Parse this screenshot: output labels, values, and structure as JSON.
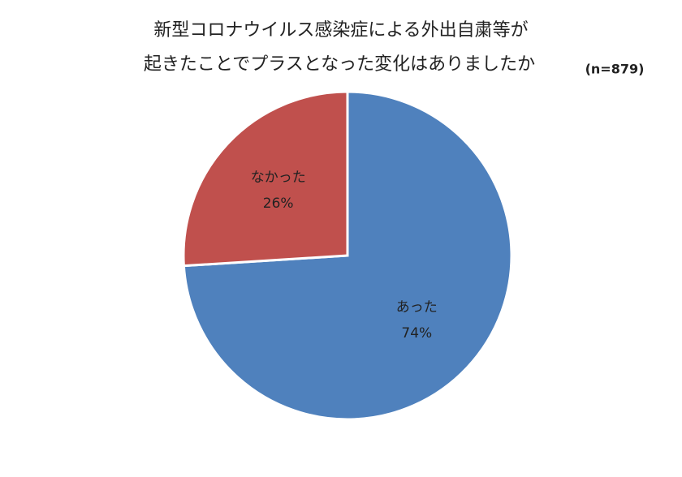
{
  "chart_data": {
    "type": "pie",
    "title": [
      "新型コロナウイルス感染症による外出自粛等が",
      "起きたことでプラスとなった変化はありましたか"
    ],
    "annotation": "(n=879)",
    "categories": [
      "あった",
      "なかった"
    ],
    "values": [
      74,
      26
    ],
    "value_labels": [
      "74%",
      "26%"
    ],
    "colors": [
      "#4f81bd",
      "#c0504d"
    ]
  }
}
